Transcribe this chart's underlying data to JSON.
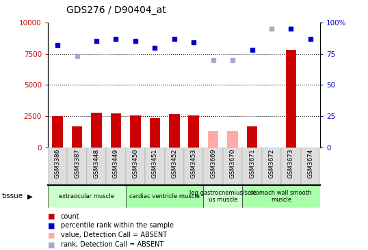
{
  "title": "GDS276 / D90404_at",
  "samples": [
    "GSM3386",
    "GSM3387",
    "GSM3448",
    "GSM3449",
    "GSM3450",
    "GSM3451",
    "GSM3452",
    "GSM3453",
    "GSM3669",
    "GSM3670",
    "GSM3671",
    "GSM3672",
    "GSM3673",
    "GSM3674"
  ],
  "counts": [
    2500,
    1700,
    2800,
    2750,
    2550,
    2350,
    2700,
    2550,
    null,
    null,
    1700,
    null,
    7800,
    null
  ],
  "counts_absent": [
    null,
    null,
    null,
    null,
    null,
    null,
    null,
    null,
    1300,
    1300,
    null,
    null,
    null,
    null
  ],
  "bar_color_present": "#cc0000",
  "bar_color_absent": "#ffaaaa",
  "ranks": [
    82,
    null,
    85,
    87,
    85,
    80,
    87,
    84,
    null,
    null,
    78,
    null,
    95,
    87
  ],
  "ranks_absent": [
    null,
    73,
    null,
    null,
    null,
    null,
    null,
    null,
    70,
    70,
    null,
    95,
    null,
    null
  ],
  "rank_color_present": "#0000cc",
  "rank_color_absent": "#aaaacc",
  "ylim_left": [
    0,
    10000
  ],
  "ylim_right": [
    0,
    100
  ],
  "yticks_left": [
    0,
    2500,
    5000,
    7500,
    10000
  ],
  "yticks_right": [
    0,
    25,
    50,
    75,
    100
  ],
  "tissues": [
    {
      "label": "extraocular muscle",
      "start": 0,
      "end": 3,
      "color": "#ccffcc"
    },
    {
      "label": "cardiac ventricle muscle",
      "start": 4,
      "end": 7,
      "color": "#aaffaa"
    },
    {
      "label": "leg gastrocnemius/sole\nus muscle",
      "start": 8,
      "end": 9,
      "color": "#ccffcc"
    },
    {
      "label": "stomach wall smooth\nmuscle",
      "start": 10,
      "end": 13,
      "color": "#aaffaa"
    }
  ],
  "legend_items": [
    {
      "label": "count",
      "color": "#cc0000"
    },
    {
      "label": "percentile rank within the sample",
      "color": "#0000cc"
    },
    {
      "label": "value, Detection Call = ABSENT",
      "color": "#ffaaaa"
    },
    {
      "label": "rank, Detection Call = ABSENT",
      "color": "#aaaacc"
    }
  ],
  "bar_width": 0.55
}
